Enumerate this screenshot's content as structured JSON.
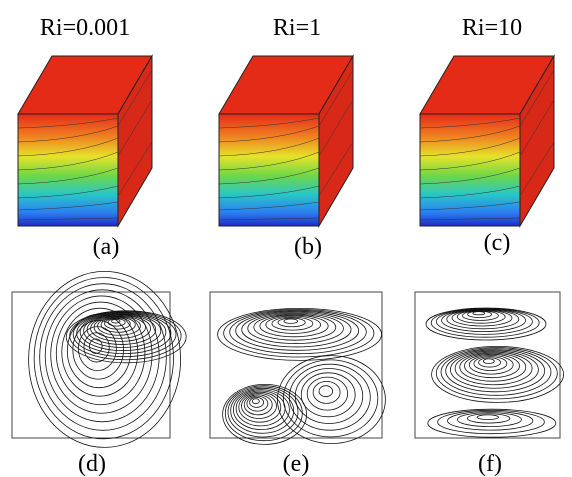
{
  "columns": [
    {
      "title": "Ri=0.001",
      "top_label": "(a)",
      "bottom_label": "(d)"
    },
    {
      "title": "Ri=1",
      "top_label": "(b)",
      "bottom_label": "(e)"
    },
    {
      "title": "Ri=10",
      "top_label": "(c)",
      "bottom_label": "(f)"
    }
  ]
}
